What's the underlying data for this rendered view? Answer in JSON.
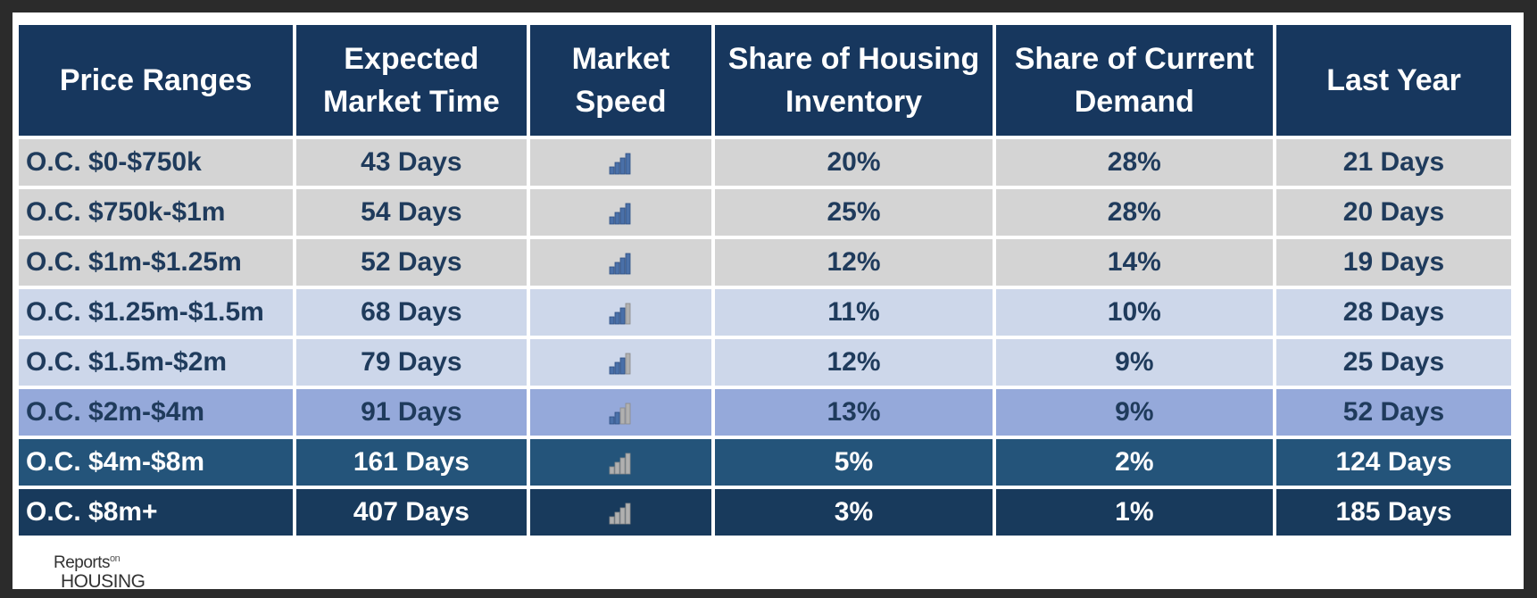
{
  "table": {
    "headers": [
      "Price Ranges",
      "Expected Market Time",
      "Market Speed",
      "Share of Housing Inventory",
      "Share of Current Demand",
      "Last Year"
    ],
    "rows": [
      {
        "range": "O.C. $0-$750k",
        "market_time": "43 Days",
        "speed_level": 4,
        "inventory_share": "20%",
        "demand_share": "28%",
        "last_year": "21 Days"
      },
      {
        "range": "O.C. $750k-$1m",
        "market_time": "54 Days",
        "speed_level": 4,
        "inventory_share": "25%",
        "demand_share": "28%",
        "last_year": "20 Days"
      },
      {
        "range": "O.C. $1m-$1.25m",
        "market_time": "52 Days",
        "speed_level": 4,
        "inventory_share": "12%",
        "demand_share": "14%",
        "last_year": "19 Days"
      },
      {
        "range": "O.C. $1.25m-$1.5m",
        "market_time": "68 Days",
        "speed_level": 3,
        "inventory_share": "11%",
        "demand_share": "10%",
        "last_year": "28 Days"
      },
      {
        "range": "O.C. $1.5m-$2m",
        "market_time": "79 Days",
        "speed_level": 3,
        "inventory_share": "12%",
        "demand_share": "9%",
        "last_year": "25 Days"
      },
      {
        "range": "O.C. $2m-$4m",
        "market_time": "91 Days",
        "speed_level": 2,
        "inventory_share": "13%",
        "demand_share": "9%",
        "last_year": "52 Days"
      },
      {
        "range": "O.C. $4m-$8m",
        "market_time": "161 Days",
        "speed_level": 0,
        "inventory_share": "5%",
        "demand_share": "2%",
        "last_year": "124 Days"
      },
      {
        "range": "O.C. $8m+",
        "market_time": "407 Days",
        "speed_level": 0,
        "inventory_share": "3%",
        "demand_share": "1%",
        "last_year": "185 Days"
      }
    ],
    "row_tiers": [
      "gray",
      "gray",
      "gray",
      "light",
      "light",
      "mid",
      "dark",
      "navy"
    ]
  },
  "speed_icon": {
    "name": "signal-strength-icon",
    "bars_total": 4,
    "filled_color": "#4a70a8",
    "empty_color": "#b0b0b0"
  },
  "logo": {
    "reports": "Reports",
    "on": "on",
    "housing": "HOUSING"
  },
  "colors": {
    "header_bg": "#17375e",
    "tier_gray": "#d4d4d4",
    "tier_light": "#cdd7ea",
    "tier_mid": "#95a9da",
    "tier_dark": "#24547a",
    "tier_navy": "#183a5c"
  }
}
